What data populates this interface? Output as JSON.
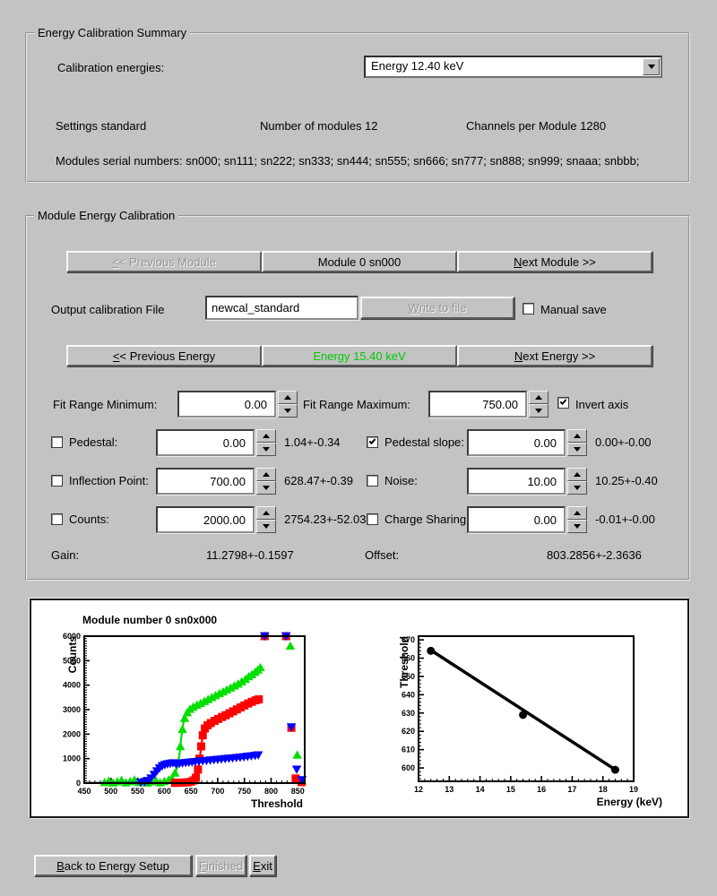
{
  "summary": {
    "title": "Energy Calibration Summary",
    "calibration_energies_label": "Calibration energies:",
    "energy_dropdown_value": "Energy 12.40 keV",
    "settings": "Settings standard",
    "num_modules": "Number of modules 12",
    "channels_per_module": "Channels per Module 1280",
    "serial_numbers": "Modules serial numbers: sn000; sn111; sn222; sn333; sn444; sn555; sn666; sn777; sn888; sn999; snaaa; snbbb;"
  },
  "module_cal": {
    "title": "Module Energy Calibration",
    "prev_module": "&<< Previous Module",
    "module_label": "Module 0 sn000",
    "next_module": "&Next Module >>",
    "output_file_label": "Output calibration File",
    "output_file_value": "newcal_standard",
    "write_to_file": "&Write to file",
    "manual_save_label": "Manual save",
    "manual_save_checked": false,
    "prev_energy": "&<< Previous Energy",
    "energy_label": "Energy 15.40 keV",
    "energy_color": "#00cc00",
    "next_energy": "&Next Energy >>",
    "fit_min_label": "Fit Range Minimum:",
    "fit_min_value": "0.00",
    "fit_max_label": "Fit Range Maximum:",
    "fit_max_value": "750.00",
    "invert_axis_label": "Invert axis",
    "invert_axis_checked": true,
    "params": [
      {
        "label": "Pedestal:",
        "checked": false,
        "value": "0.00",
        "result": "1.04+-0.34"
      },
      {
        "label": "Pedestal slope:",
        "checked": true,
        "value": "0.00",
        "result": "0.00+-0.00"
      },
      {
        "label": "Inflection Point:",
        "checked": false,
        "value": "700.00",
        "result": "628.47+-0.39"
      },
      {
        "label": "Noise:",
        "checked": false,
        "value": "10.00",
        "result": "10.25+-0.40"
      },
      {
        "label": "Counts:",
        "checked": false,
        "value": "2000.00",
        "result": "2754.23+-52.03"
      },
      {
        "label": "Charge Sharing",
        "checked": false,
        "value": "0.00",
        "result": "-0.01+-0.00"
      }
    ],
    "gain_label": "Gain:",
    "gain_value": "11.2798+-0.1597",
    "offset_label": "Offset:",
    "offset_value": "803.2856+-2.3636"
  },
  "footer": {
    "back": "&Back to Energy Setup",
    "finished": "&Finished",
    "exit": "&Exit"
  },
  "chart_data": [
    {
      "type": "scatter",
      "title": "Module number 0 sn0x000",
      "xlabel": "Threshold",
      "ylabel": "Counts",
      "xlim": [
        450,
        863
      ],
      "ylim": [
        0,
        6000
      ],
      "xticks": [
        450,
        500,
        550,
        600,
        650,
        700,
        750,
        800,
        850
      ],
      "yticks": [
        0,
        1000,
        2000,
        3000,
        4000,
        5000,
        6000
      ],
      "series": [
        {
          "name": "trimbit-scan-green",
          "color": "#00e000",
          "marker": "triangle-up",
          "curve": [
            [
              452,
              5
            ],
            [
              560,
              15
            ],
            [
              590,
              40
            ],
            [
              605,
              90
            ],
            [
              612,
              160
            ],
            [
              618,
              300
            ],
            [
              624,
              620
            ],
            [
              628,
              1100
            ],
            [
              632,
              1900
            ],
            [
              636,
              2500
            ],
            [
              640,
              2800
            ],
            [
              646,
              2960
            ],
            [
              652,
              3080
            ],
            [
              660,
              3160
            ],
            [
              670,
              3270
            ],
            [
              680,
              3360
            ],
            [
              690,
              3450
            ],
            [
              700,
              3550
            ],
            [
              710,
              3650
            ],
            [
              720,
              3750
            ],
            [
              730,
              3860
            ],
            [
              740,
              3980
            ],
            [
              750,
              4120
            ],
            [
              760,
              4300
            ],
            [
              770,
              4480
            ],
            [
              780,
              4660
            ]
          ],
          "points": [
            [
              488,
              30
            ],
            [
              496,
              90
            ],
            [
              504,
              10
            ],
            [
              512,
              60
            ],
            [
              520,
              120
            ],
            [
              528,
              20
            ],
            [
              536,
              70
            ],
            [
              544,
              130
            ],
            [
              552,
              30
            ],
            [
              560,
              80
            ],
            [
              568,
              10
            ],
            [
              576,
              60
            ],
            [
              584,
              110
            ],
            [
              592,
              20
            ],
            [
              600,
              70
            ],
            [
              608,
              130
            ],
            [
              614,
              200
            ],
            [
              620,
              420
            ],
            [
              626,
              850
            ],
            [
              630,
              1500
            ],
            [
              634,
              2200
            ],
            [
              638,
              2650
            ],
            [
              643,
              2880
            ],
            [
              648,
              3020
            ],
            [
              654,
              3110
            ],
            [
              661,
              3190
            ],
            [
              668,
              3260
            ],
            [
              675,
              3340
            ],
            [
              682,
              3420
            ],
            [
              689,
              3500
            ],
            [
              696,
              3580
            ],
            [
              703,
              3660
            ],
            [
              710,
              3730
            ],
            [
              717,
              3810
            ],
            [
              724,
              3890
            ],
            [
              731,
              3970
            ],
            [
              738,
              4050
            ],
            [
              745,
              4140
            ],
            [
              752,
              4240
            ],
            [
              758,
              4350
            ],
            [
              764,
              4440
            ],
            [
              770,
              4530
            ],
            [
              775,
              4620
            ],
            [
              780,
              4720
            ],
            [
              788,
              6000
            ],
            [
              828,
              6000
            ],
            [
              836,
              5600
            ],
            [
              849,
              1150
            ],
            [
              858,
              100
            ]
          ]
        },
        {
          "name": "scan-red",
          "color": "#ff0000",
          "marker": "square",
          "curve": [
            [
              452,
              2
            ],
            [
              600,
              5
            ],
            [
              630,
              15
            ],
            [
              645,
              40
            ],
            [
              652,
              80
            ],
            [
              657,
              150
            ],
            [
              661,
              350
            ],
            [
              665,
              800
            ],
            [
              668,
              1300
            ],
            [
              671,
              1800
            ],
            [
              674,
              2150
            ],
            [
              678,
              2300
            ],
            [
              684,
              2420
            ],
            [
              692,
              2520
            ],
            [
              700,
              2610
            ],
            [
              710,
              2700
            ],
            [
              720,
              2790
            ],
            [
              730,
              2890
            ],
            [
              740,
              2990
            ],
            [
              750,
              3090
            ],
            [
              760,
              3200
            ],
            [
              770,
              3310
            ],
            [
              777,
              3400
            ]
          ],
          "points": [
            [
              620,
              10
            ],
            [
              626,
              15
            ],
            [
              632,
              20
            ],
            [
              638,
              25
            ],
            [
              644,
              35
            ],
            [
              650,
              60
            ],
            [
              655,
              110
            ],
            [
              659,
              220
            ],
            [
              663,
              550
            ],
            [
              666,
              1000
            ],
            [
              669,
              1500
            ],
            [
              672,
              1950
            ],
            [
              676,
              2230
            ],
            [
              681,
              2360
            ],
            [
              687,
              2450
            ],
            [
              694,
              2540
            ],
            [
              701,
              2620
            ],
            [
              708,
              2700
            ],
            [
              715,
              2770
            ],
            [
              722,
              2850
            ],
            [
              729,
              2930
            ],
            [
              736,
              3010
            ],
            [
              743,
              3090
            ],
            [
              750,
              3170
            ],
            [
              757,
              3250
            ],
            [
              764,
              3320
            ],
            [
              771,
              3380
            ],
            [
              777,
              3420
            ],
            [
              788,
              6000
            ],
            [
              828,
              6000
            ],
            [
              838,
              2260
            ],
            [
              846,
              190
            ],
            [
              857,
              40
            ]
          ]
        },
        {
          "name": "scan-blue",
          "color": "#0000ff",
          "marker": "triangle-down",
          "curve": [
            [
              452,
              2
            ],
            [
              540,
              8
            ],
            [
              555,
              20
            ],
            [
              562,
              45
            ],
            [
              568,
              95
            ],
            [
              574,
              180
            ],
            [
              580,
              330
            ],
            [
              586,
              500
            ],
            [
              592,
              630
            ],
            [
              598,
              720
            ],
            [
              604,
              770
            ],
            [
              610,
              800
            ],
            [
              616,
              815
            ],
            [
              624,
              790
            ],
            [
              632,
              810
            ],
            [
              640,
              828
            ],
            [
              650,
              848
            ],
            [
              660,
              866
            ],
            [
              670,
              884
            ],
            [
              680,
              902
            ],
            [
              690,
              920
            ],
            [
              700,
              938
            ],
            [
              710,
              956
            ],
            [
              720,
              974
            ],
            [
              730,
              992
            ],
            [
              740,
              1010
            ],
            [
              750,
              1030
            ],
            [
              760,
              1055
            ],
            [
              770,
              1085
            ],
            [
              776,
              1125
            ]
          ],
          "points": [
            [
              556,
              20
            ],
            [
              563,
              50
            ],
            [
              569,
              100
            ],
            [
              575,
              200
            ],
            [
              581,
              350
            ],
            [
              586,
              490
            ],
            [
              591,
              610
            ],
            [
              596,
              700
            ],
            [
              601,
              750
            ],
            [
              606,
              780
            ],
            [
              611,
              800
            ],
            [
              616,
              820
            ],
            [
              622,
              770
            ],
            [
              628,
              795
            ],
            [
              634,
              815
            ],
            [
              640,
              830
            ],
            [
              646,
              845
            ],
            [
              652,
              858
            ],
            [
              658,
              872
            ],
            [
              665,
              888
            ],
            [
              672,
              903
            ],
            [
              679,
              918
            ],
            [
              686,
              933
            ],
            [
              693,
              948
            ],
            [
              700,
              962
            ],
            [
              707,
              977
            ],
            [
              714,
              992
            ],
            [
              721,
              1007
            ],
            [
              728,
              1022
            ],
            [
              735,
              1037
            ],
            [
              742,
              1052
            ],
            [
              749,
              1068
            ],
            [
              756,
              1088
            ],
            [
              763,
              1105
            ],
            [
              770,
              1125
            ],
            [
              776,
              1145
            ],
            [
              788,
              6000
            ],
            [
              828,
              6000
            ],
            [
              838,
              2290
            ],
            [
              848,
              560
            ],
            [
              858,
              130
            ]
          ]
        }
      ]
    },
    {
      "type": "scatter",
      "title": "",
      "xlabel": "Energy (keV)",
      "ylabel": "Threshold",
      "xlim": [
        12,
        19
      ],
      "ylim": [
        592.7,
        672
      ],
      "xticks": [
        12,
        13,
        14,
        15,
        16,
        17,
        18,
        19
      ],
      "yticks": [
        600,
        610,
        620,
        630,
        640,
        650,
        660,
        670
      ],
      "series": [
        {
          "name": "threshold-vs-energy",
          "color": "#000000",
          "marker": "circle",
          "curve": [
            [
              12.32,
              665.2
            ],
            [
              18.5,
              598.0
            ]
          ],
          "points": [
            [
              12.4,
              664
            ],
            [
              15.4,
              629
            ],
            [
              18.4,
              599
            ]
          ]
        }
      ]
    }
  ]
}
